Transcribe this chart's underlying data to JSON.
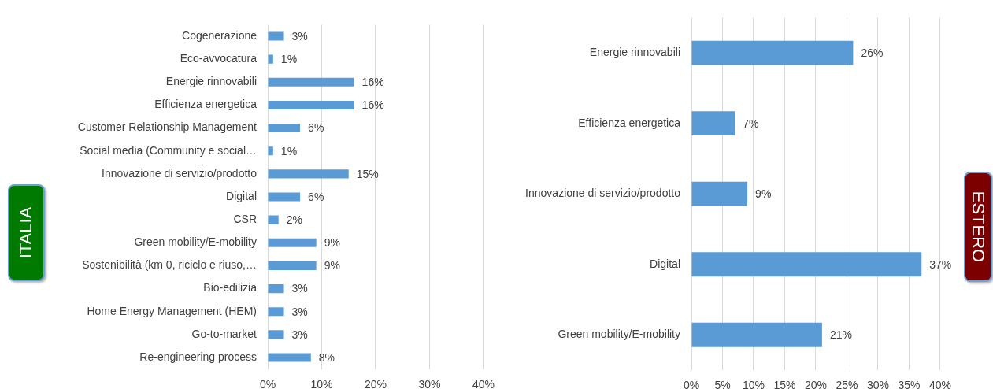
{
  "chart_data": [
    {
      "type": "bar",
      "orientation": "horizontal",
      "title": "ITALIA",
      "categories": [
        "Cogenerazione",
        "Eco-avvocatura",
        "Energie rinnovabili",
        "Efficienza energetica",
        "Customer Relationship Management",
        "Social media (Community e social…",
        "Innovazione di servizio/prodotto",
        "Digital",
        "CSR",
        "Green mobility/E-mobility",
        "Sostenibilità (km 0, riciclo e riuso,…",
        "Bio-edilizia",
        "Home Energy Management (HEM)",
        "Go-to-market",
        "Re-engineering process"
      ],
      "values": [
        3,
        1,
        16,
        16,
        6,
        1,
        15,
        6,
        2,
        9,
        9,
        3,
        3,
        3,
        8
      ],
      "value_labels": [
        "3%",
        "1%",
        "16%",
        "16%",
        "6%",
        "1%",
        "15%",
        "6%",
        "2%",
        "9%",
        "9%",
        "3%",
        "3%",
        "3%",
        "8%"
      ],
      "color": "#5b9bd5",
      "xlim": [
        0,
        40
      ],
      "xticks": [
        {
          "value": 0,
          "label": "0%"
        },
        {
          "value": 10,
          "label": "10%"
        },
        {
          "value": 20,
          "label": "20%"
        },
        {
          "value": 30,
          "label": "30%"
        },
        {
          "value": 40,
          "label": "40%"
        }
      ],
      "grid": "x"
    },
    {
      "type": "bar",
      "orientation": "horizontal",
      "categories": [
        "Energie rinnovabili",
        "Efficienza energetica",
        "Innovazione di servizio/prodotto",
        "Digital",
        "Green mobility/E-mobility"
      ],
      "values": [
        26,
        7,
        9,
        37,
        21
      ],
      "value_labels": [
        "26%",
        "7%",
        "9%",
        "37%",
        "21%"
      ],
      "color": "#5b9bd5",
      "xlim": [
        0,
        40
      ],
      "xticks": [
        {
          "value": 0,
          "label": "0%"
        },
        {
          "value": 5,
          "label": "5%"
        },
        {
          "value": 10,
          "label": "10%"
        },
        {
          "value": 15,
          "label": "15%"
        },
        {
          "value": 20,
          "label": "20%"
        },
        {
          "value": 25,
          "label": "25%"
        },
        {
          "value": 30,
          "label": "30%"
        },
        {
          "value": 35,
          "label": "35%"
        },
        {
          "value": 40,
          "label": "40%"
        }
      ],
      "grid": "x"
    },
    {
      "type": "other",
      "title": "ESTERO"
    }
  ]
}
